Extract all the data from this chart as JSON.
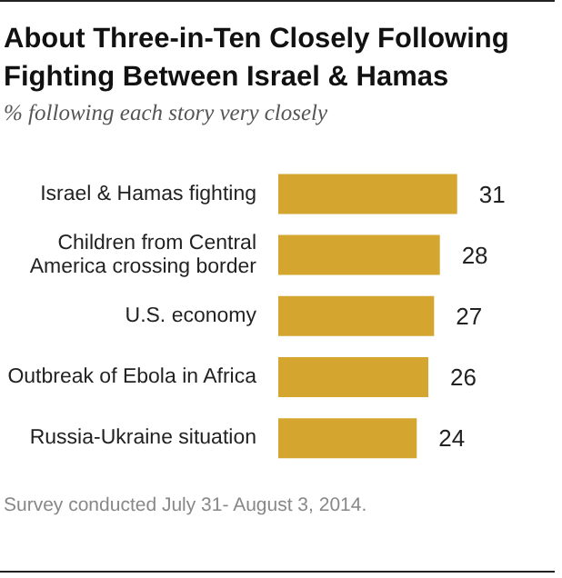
{
  "chart_data": {
    "type": "bar",
    "orientation": "horizontal",
    "title": "About Three-in-Ten Closely Following Fighting Between Israel & Hamas",
    "subtitle": "% following each story very closely",
    "categories": [
      "Israel & Hamas fighting",
      "Children from Central America crossing border",
      "U.S. economy",
      "Outbreak of Ebola in Africa",
      "Russia-Ukraine situation"
    ],
    "values": [
      31,
      28,
      27,
      26,
      24
    ],
    "color": "#d4a52f",
    "data_labels": true,
    "annotations": [
      "Survey conducted July 31- August 3, 2014."
    ]
  }
}
